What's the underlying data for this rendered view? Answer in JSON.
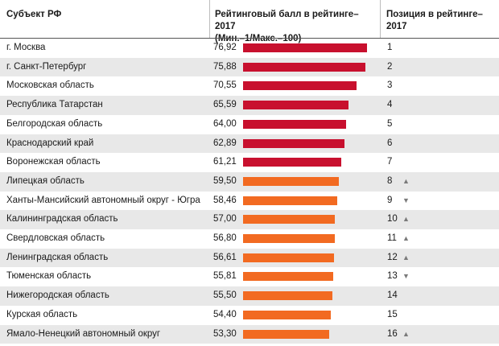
{
  "header": {
    "region": "Субъект РФ",
    "score_line1": "Рейтинговый балл в рейтинге–2017",
    "score_line2": "(Мин.–1/Макс.–100)",
    "position": "Позиция в рейтинге–2017"
  },
  "colors": {
    "top7": "#c8102e",
    "rest": "#f26a21"
  },
  "chart_data": {
    "type": "table",
    "scale_max": 100,
    "rows": [
      {
        "region": "г. Москва",
        "score": "76,92",
        "value": 76.92,
        "position": "1",
        "trend": ""
      },
      {
        "region": "г. Санкт-Петербург",
        "score": "75,88",
        "value": 75.88,
        "position": "2",
        "trend": ""
      },
      {
        "region": "Московская область",
        "score": "70,55",
        "value": 70.55,
        "position": "3",
        "trend": ""
      },
      {
        "region": "Республика Татарстан",
        "score": "65,59",
        "value": 65.59,
        "position": "4",
        "trend": ""
      },
      {
        "region": "Белгородская область",
        "score": "64,00",
        "value": 64.0,
        "position": "5",
        "trend": ""
      },
      {
        "region": "Краснодарский край",
        "score": "62,89",
        "value": 62.89,
        "position": "6",
        "trend": ""
      },
      {
        "region": "Воронежская область",
        "score": "61,21",
        "value": 61.21,
        "position": "7",
        "trend": ""
      },
      {
        "region": "Липецкая область",
        "score": "59,50",
        "value": 59.5,
        "position": "8",
        "trend": "▲"
      },
      {
        "region": "Ханты-Мансийский автономный округ - Югра",
        "score": "58,46",
        "value": 58.46,
        "position": "9",
        "trend": "▼"
      },
      {
        "region": "Калининградская область",
        "score": "57,00",
        "value": 57.0,
        "position": "10",
        "trend": "▲"
      },
      {
        "region": "Свердловская область",
        "score": "56,80",
        "value": 56.8,
        "position": "11",
        "trend": "▲"
      },
      {
        "region": "Ленинградская область",
        "score": "56,61",
        "value": 56.61,
        "position": "12",
        "trend": "▲"
      },
      {
        "region": "Тюменская область",
        "score": "55,81",
        "value": 55.81,
        "position": "13",
        "trend": "▼"
      },
      {
        "region": "Нижегородская область",
        "score": "55,50",
        "value": 55.5,
        "position": "14",
        "trend": ""
      },
      {
        "region": "Курская область",
        "score": "54,40",
        "value": 54.4,
        "position": "15",
        "trend": ""
      },
      {
        "region": "Ямало-Ненецкий автономный округ",
        "score": "53,30",
        "value": 53.3,
        "position": "16",
        "trend": "▲"
      }
    ]
  }
}
